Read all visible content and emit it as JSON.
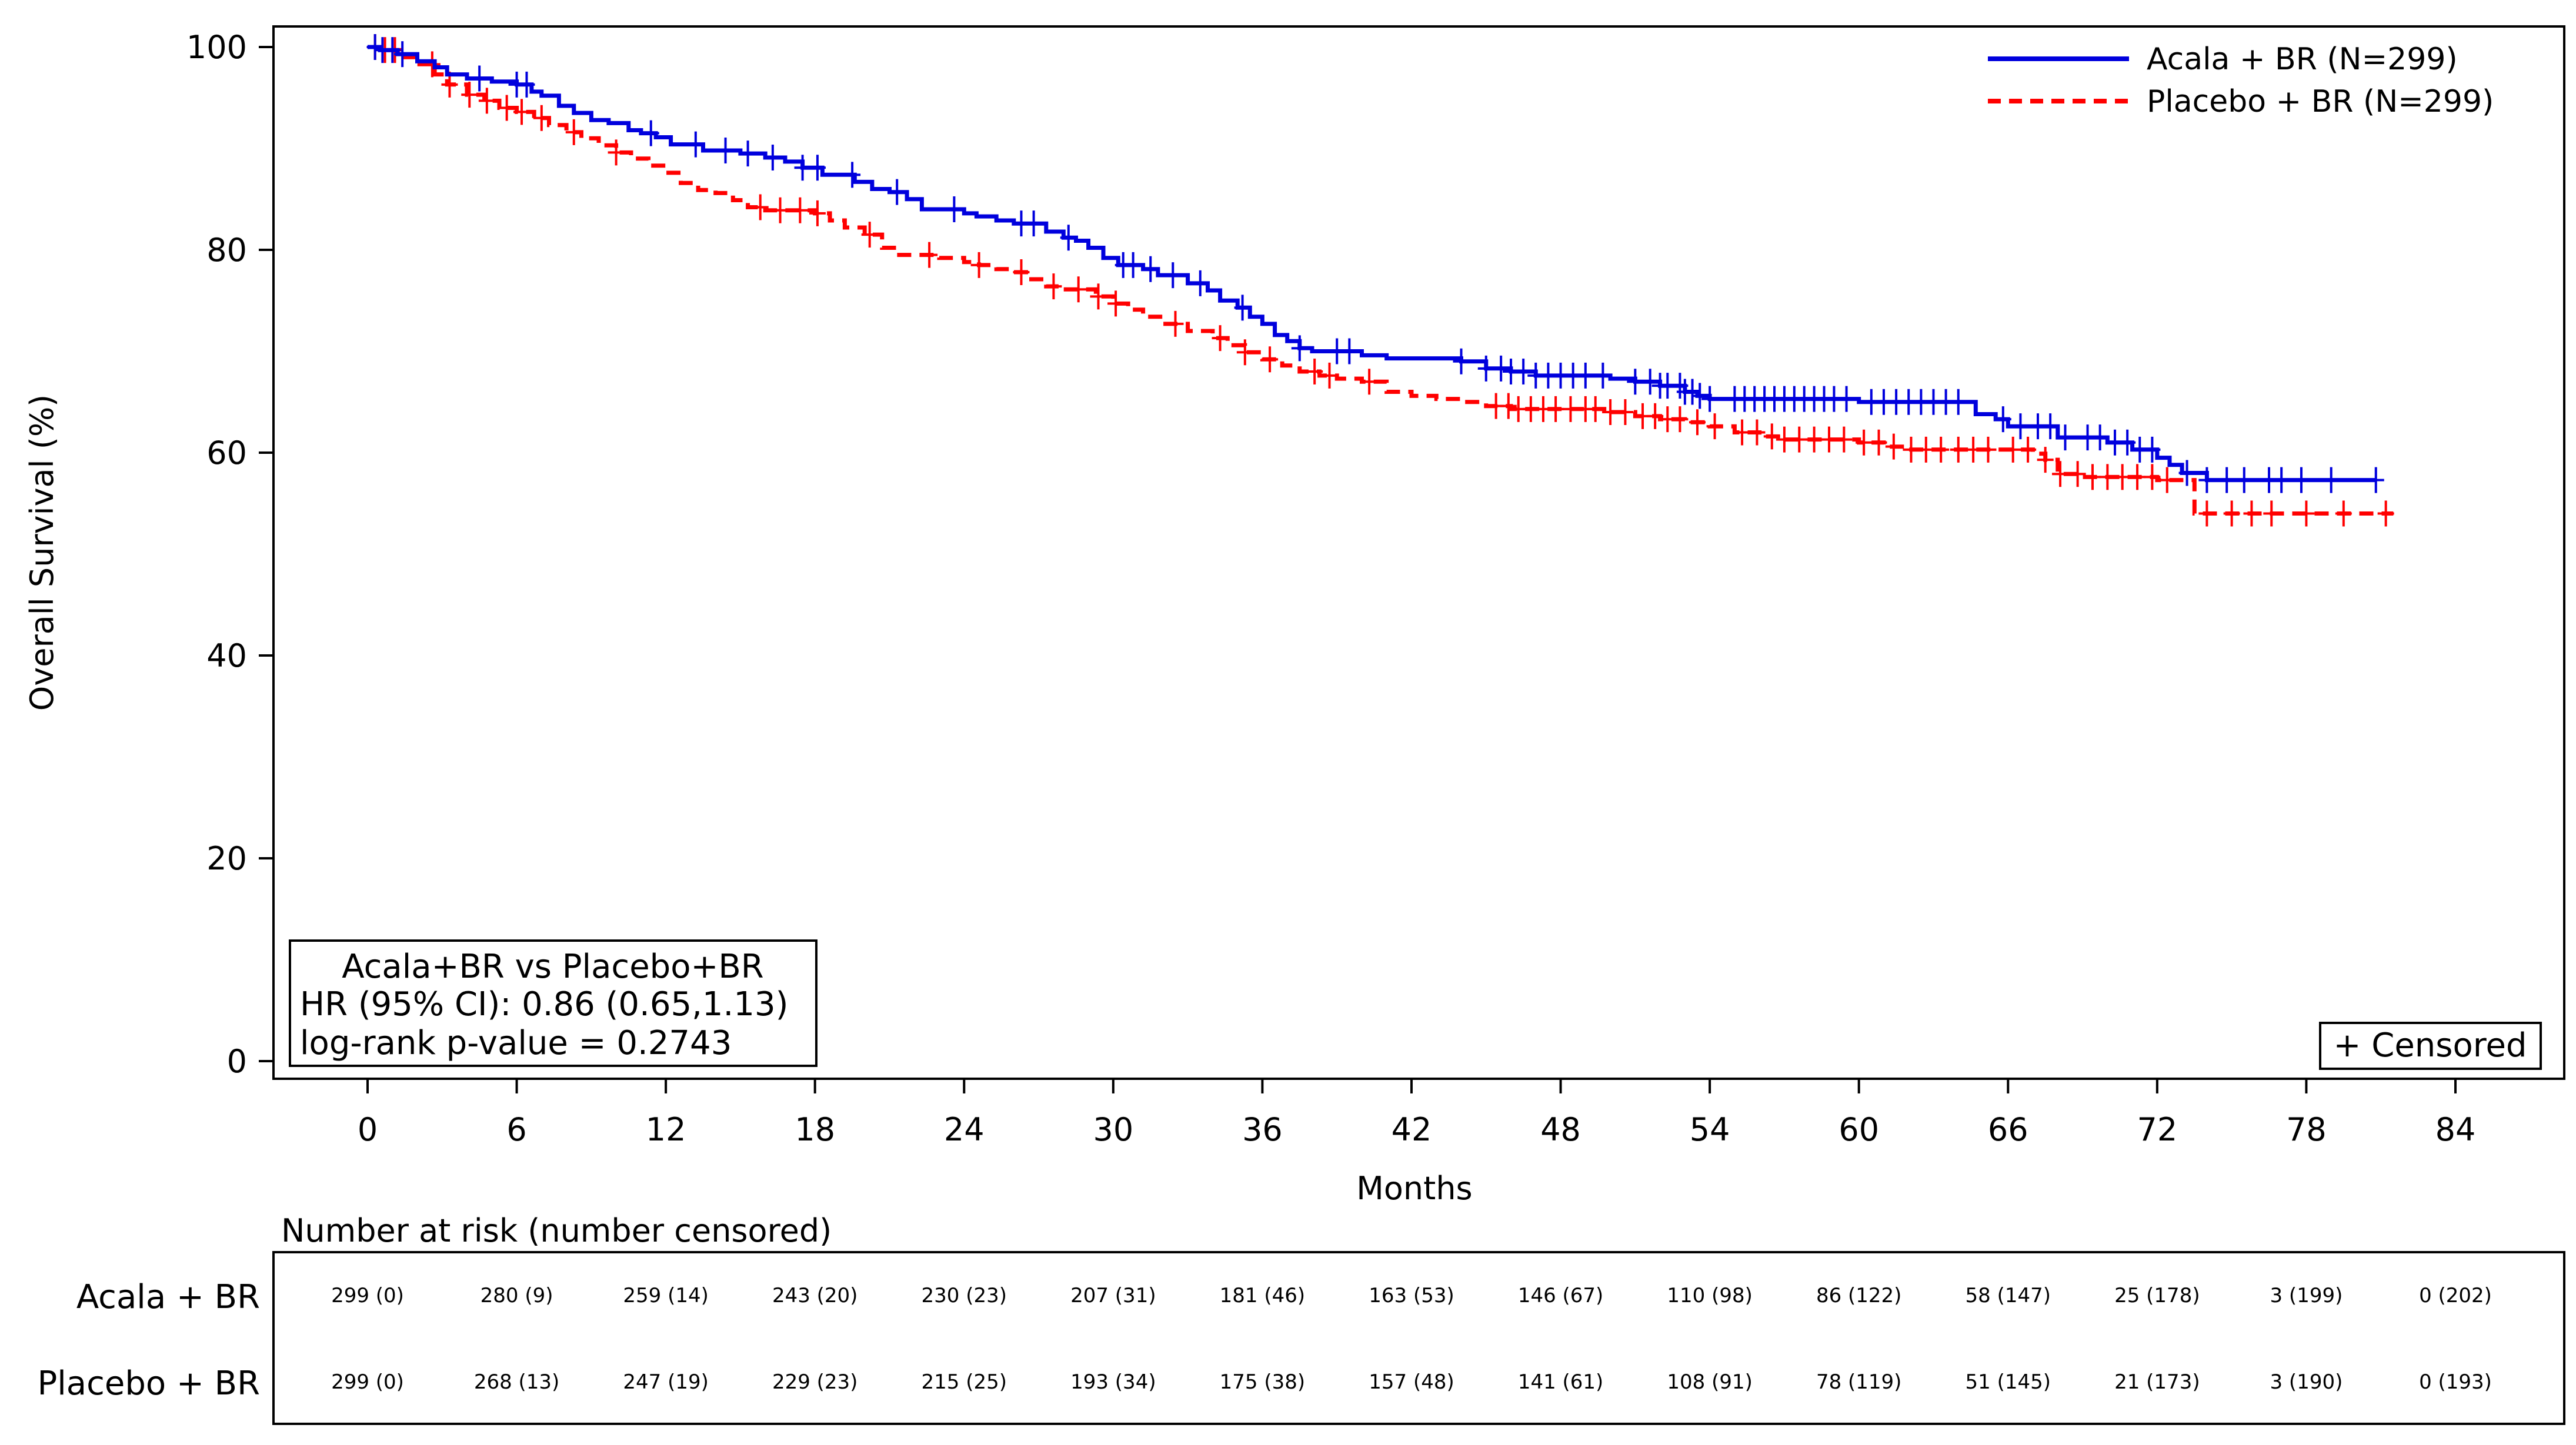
{
  "chart_data": {
    "type": "line",
    "subtype": "kaplan-meier",
    "xlabel": "Months",
    "ylabel": "Overall Survival (%)",
    "xlim": [
      0,
      84
    ],
    "ylim": [
      0,
      100
    ],
    "x_ticks": [
      "0",
      "6",
      "12",
      "18",
      "24",
      "30",
      "36",
      "42",
      "48",
      "54",
      "60",
      "66",
      "72",
      "78",
      "84"
    ],
    "y_ticks": [
      "0",
      "20",
      "40",
      "60",
      "80",
      "100"
    ],
    "grid": false,
    "legend_position": "top-right",
    "series": [
      {
        "name": "Acala + BR (N=299)",
        "color": "#0000dd",
        "line_style": "solid",
        "points": [
          [
            0,
            100
          ],
          [
            0.5,
            99.7
          ],
          [
            1.2,
            99.3
          ],
          [
            2,
            98.6
          ],
          [
            2.7,
            98.0
          ],
          [
            3.2,
            97.3
          ],
          [
            4,
            96.9
          ],
          [
            5,
            96.6
          ],
          [
            5.5,
            96.6
          ],
          [
            6,
            96.3
          ],
          [
            6.6,
            95.6
          ],
          [
            7,
            95.2
          ],
          [
            7.7,
            94.2
          ],
          [
            8.3,
            93.5
          ],
          [
            9,
            92.8
          ],
          [
            9.7,
            92.5
          ],
          [
            10.5,
            91.8
          ],
          [
            11,
            91.5
          ],
          [
            11.6,
            91.1
          ],
          [
            12.2,
            90.4
          ],
          [
            13,
            90.4
          ],
          [
            13.5,
            89.8
          ],
          [
            14.3,
            89.8
          ],
          [
            15,
            89.5
          ],
          [
            16,
            89.1
          ],
          [
            16.8,
            88.7
          ],
          [
            17.5,
            88.1
          ],
          [
            18.3,
            87.4
          ],
          [
            19,
            87.4
          ],
          [
            19.6,
            86.7
          ],
          [
            20.3,
            86.0
          ],
          [
            21,
            85.7
          ],
          [
            21.7,
            85.0
          ],
          [
            22.3,
            84.0
          ],
          [
            23,
            84.0
          ],
          [
            24,
            83.6
          ],
          [
            24.5,
            83.3
          ],
          [
            25.3,
            82.9
          ],
          [
            26,
            82.6
          ],
          [
            26.8,
            82.6
          ],
          [
            27.3,
            81.8
          ],
          [
            28,
            81.2
          ],
          [
            28.5,
            80.9
          ],
          [
            29,
            80.2
          ],
          [
            29.6,
            79.2
          ],
          [
            30.2,
            78.5
          ],
          [
            31.2,
            78.1
          ],
          [
            31.8,
            77.5
          ],
          [
            32.3,
            77.5
          ],
          [
            33,
            76.7
          ],
          [
            33.8,
            76.0
          ],
          [
            34.3,
            75.0
          ],
          [
            35,
            74.3
          ],
          [
            35.5,
            73.4
          ],
          [
            36,
            72.7
          ],
          [
            36.5,
            71.6
          ],
          [
            37,
            71.0
          ],
          [
            37.5,
            70.3
          ],
          [
            38,
            70.0
          ],
          [
            39,
            70.0
          ],
          [
            40,
            69.6
          ],
          [
            41,
            69.3
          ],
          [
            42,
            69.3
          ],
          [
            43,
            69.3
          ],
          [
            44,
            69.0
          ],
          [
            45,
            68.3
          ],
          [
            46,
            68.0
          ],
          [
            47,
            67.6
          ],
          [
            48,
            67.6
          ],
          [
            50,
            67.3
          ],
          [
            51,
            67.0
          ],
          [
            52,
            66.6
          ],
          [
            53,
            66.0
          ],
          [
            53.5,
            65.6
          ],
          [
            54,
            65.3
          ],
          [
            55,
            65.3
          ],
          [
            57,
            65.3
          ],
          [
            59,
            65.3
          ],
          [
            60,
            65.0
          ],
          [
            62,
            65.0
          ],
          [
            64,
            65.0
          ],
          [
            64.7,
            63.8
          ],
          [
            65.5,
            63.3
          ],
          [
            66,
            62.6
          ],
          [
            67,
            62.6
          ],
          [
            68,
            61.5
          ],
          [
            69,
            61.5
          ],
          [
            70,
            61.0
          ],
          [
            71,
            60.3
          ],
          [
            72,
            59.5
          ],
          [
            72.5,
            58.8
          ],
          [
            73,
            58.0
          ],
          [
            74,
            57.3
          ],
          [
            76,
            57.3
          ],
          [
            78,
            57.3
          ],
          [
            80,
            57.3
          ],
          [
            80.8,
            57.3
          ]
        ],
        "censored_x": [
          0.3,
          0.6,
          1,
          1.4,
          4.5,
          6,
          6.4,
          11.4,
          13.2,
          14.4,
          15.3,
          16.3,
          17.5,
          18.1,
          19.5,
          21.3,
          23.6,
          26.3,
          26.8,
          28.2,
          30.4,
          30.8,
          31.5,
          32.4,
          33.5,
          35.2,
          37.5,
          39,
          39.5,
          44,
          45,
          45.6,
          46,
          46.5,
          47,
          47.5,
          48,
          48.5,
          49,
          49.7,
          51,
          51.6,
          52,
          52.3,
          52.8,
          53,
          53.3,
          53.6,
          54,
          55,
          55.4,
          55.8,
          56.2,
          56.6,
          57,
          57.4,
          57.8,
          58.2,
          58.6,
          59,
          59.5,
          60.5,
          61,
          61.5,
          62,
          62.5,
          63,
          63.5,
          64,
          65.8,
          66.5,
          67.2,
          67.7,
          68.3,
          69.2,
          69.7,
          70.3,
          70.8,
          71.3,
          71.8,
          73.2,
          74,
          74.8,
          75.5,
          76.5,
          77,
          77.8,
          79,
          80.8
        ]
      },
      {
        "name": "Placebo + BR (N=299)",
        "color": "#ff0000",
        "line_style": "dashed",
        "points": [
          [
            0,
            100
          ],
          [
            0.5,
            99.7
          ],
          [
            1.3,
            99.0
          ],
          [
            2,
            98.3
          ],
          [
            2.7,
            97.3
          ],
          [
            3.2,
            96.3
          ],
          [
            4,
            95.3
          ],
          [
            4.7,
            94.7
          ],
          [
            5.3,
            94.0
          ],
          [
            6,
            93.6
          ],
          [
            6.7,
            93.0
          ],
          [
            7.3,
            92.3
          ],
          [
            8,
            91.6
          ],
          [
            8.6,
            91.0
          ],
          [
            9.3,
            90.3
          ],
          [
            10,
            89.6
          ],
          [
            10.6,
            89.0
          ],
          [
            11.3,
            88.3
          ],
          [
            12,
            87.6
          ],
          [
            12.6,
            86.6
          ],
          [
            13.3,
            85.9
          ],
          [
            14,
            85.6
          ],
          [
            14.7,
            84.9
          ],
          [
            15.3,
            84.2
          ],
          [
            16,
            83.9
          ],
          [
            17,
            83.9
          ],
          [
            18,
            83.6
          ],
          [
            18.6,
            82.9
          ],
          [
            19.2,
            82.2
          ],
          [
            20,
            81.5
          ],
          [
            20.7,
            80.2
          ],
          [
            21.3,
            79.5
          ],
          [
            22.2,
            79.5
          ],
          [
            23,
            79.2
          ],
          [
            24,
            78.8
          ],
          [
            24.6,
            78.5
          ],
          [
            25.3,
            78.1
          ],
          [
            26,
            77.8
          ],
          [
            26.6,
            77.1
          ],
          [
            27.3,
            76.4
          ],
          [
            28,
            76.1
          ],
          [
            28.8,
            76.1
          ],
          [
            29.3,
            75.4
          ],
          [
            30,
            74.7
          ],
          [
            30.6,
            74.1
          ],
          [
            31.2,
            73.4
          ],
          [
            32,
            72.7
          ],
          [
            33,
            72.0
          ],
          [
            34,
            71.3
          ],
          [
            34.6,
            70.6
          ],
          [
            35.3,
            69.9
          ],
          [
            36,
            69.2
          ],
          [
            36.8,
            68.6
          ],
          [
            37.5,
            68.0
          ],
          [
            38.3,
            67.6
          ],
          [
            39,
            67.3
          ],
          [
            40,
            67.0
          ],
          [
            41,
            66.0
          ],
          [
            42,
            65.6
          ],
          [
            43,
            65.3
          ],
          [
            44,
            65.0
          ],
          [
            45,
            64.6
          ],
          [
            46,
            64.3
          ],
          [
            48,
            64.3
          ],
          [
            50,
            64.0
          ],
          [
            51,
            63.6
          ],
          [
            52,
            63.3
          ],
          [
            53,
            63.0
          ],
          [
            54,
            62.6
          ],
          [
            55,
            62.0
          ],
          [
            56,
            61.6
          ],
          [
            57,
            61.3
          ],
          [
            59,
            61.3
          ],
          [
            60,
            61.0
          ],
          [
            61,
            60.6
          ],
          [
            62,
            60.3
          ],
          [
            64,
            60.3
          ],
          [
            66,
            60.3
          ],
          [
            67,
            59.9
          ],
          [
            67.5,
            59.3
          ],
          [
            68,
            57.9
          ],
          [
            69,
            57.6
          ],
          [
            71,
            57.6
          ],
          [
            72,
            57.3
          ],
          [
            73,
            57.3
          ],
          [
            73.5,
            54.0
          ],
          [
            75,
            54.0
          ],
          [
            77,
            54.0
          ],
          [
            80,
            54.0
          ],
          [
            81.5,
            54.0
          ]
        ],
        "censored_x": [
          0.3,
          0.7,
          1.1,
          2.6,
          3.3,
          4.1,
          4.8,
          5.6,
          6.2,
          7,
          8.3,
          10,
          15.8,
          16.6,
          17.4,
          18.1,
          20.2,
          22.6,
          24.6,
          26.3,
          27.6,
          28.6,
          29.4,
          30.1,
          32.5,
          34.3,
          35.3,
          36.3,
          38.1,
          38.7,
          40.3,
          45.4,
          45.9,
          46.3,
          46.8,
          47.3,
          47.8,
          48.4,
          49,
          49.4,
          50,
          50.6,
          51.3,
          51.8,
          52.3,
          52.8,
          53.5,
          54.2,
          55.3,
          55.9,
          56.5,
          57,
          57.6,
          58.2,
          58.8,
          59.4,
          60.2,
          60.8,
          61.4,
          62.1,
          62.7,
          63.3,
          64,
          64.6,
          65.2,
          66.2,
          66.8,
          67.5,
          68.1,
          68.8,
          69.4,
          70,
          70.6,
          71.2,
          71.8,
          72.4,
          74,
          75,
          75.8,
          76.6,
          78,
          79.5,
          81.2
        ]
      }
    ],
    "stats_box": {
      "title": "Acala+BR vs Placebo+BR",
      "hr": "HR (95% CI): 0.86 (0.65,1.13)",
      "p": "log-rank p-value = 0.2743"
    },
    "censored_legend": "+ Censored",
    "risk_table": {
      "title": "Number at risk (number censored)",
      "rows": [
        {
          "label": "Acala + BR",
          "values": [
            "299 (0)",
            "280 (9)",
            "259 (14)",
            "243 (20)",
            "230 (23)",
            "207 (31)",
            "181 (46)",
            "163 (53)",
            "146 (67)",
            "110 (98)",
            "86 (122)",
            "58 (147)",
            "25 (178)",
            "3 (199)",
            "0 (202)"
          ]
        },
        {
          "label": "Placebo + BR",
          "values": [
            "299 (0)",
            "268 (13)",
            "247 (19)",
            "229 (23)",
            "215 (25)",
            "193 (34)",
            "175 (38)",
            "157 (48)",
            "141 (61)",
            "108 (91)",
            "78 (119)",
            "51 (145)",
            "21 (173)",
            "3 (190)",
            "0 (193)"
          ]
        }
      ]
    }
  }
}
